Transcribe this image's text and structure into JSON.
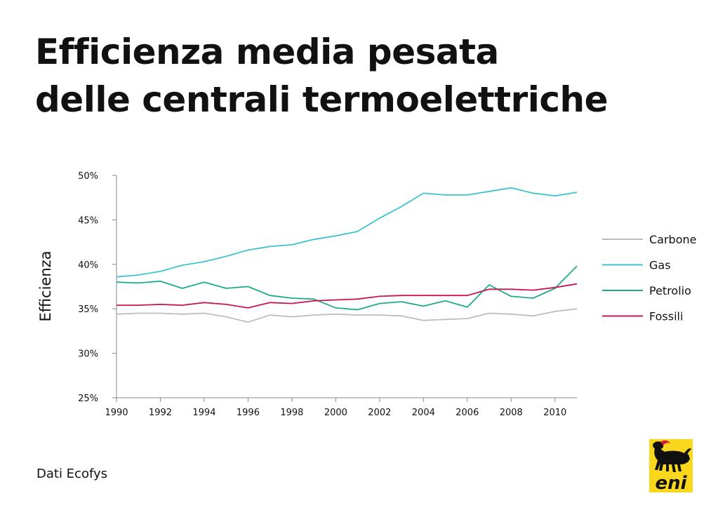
{
  "title": {
    "line1": "Efficienza media pesata",
    "line2": "delle centrali termoelettriche"
  },
  "source": "Dati Ecofys",
  "logo": {
    "icon": "eni-six-legged-dog-logo",
    "text": "eni",
    "background": "#f9d71c"
  },
  "chart_data": {
    "type": "line",
    "title": "Efficienza media pesata delle centrali termoelettriche",
    "xlabel": "",
    "ylabel": "Efficienza",
    "xlim": [
      1990,
      2011
    ],
    "ylim": [
      25,
      50
    ],
    "x_ticks": [
      1990,
      1992,
      1994,
      1996,
      1998,
      2000,
      2002,
      2004,
      2006,
      2008,
      2010
    ],
    "x_tick_labels": [
      "1990",
      "1992",
      "1994",
      "1996",
      "1998",
      "2000",
      "2002",
      "2004",
      "2006",
      "2008",
      "2010"
    ],
    "y_ticks": [
      25,
      30,
      35,
      40,
      45,
      50
    ],
    "y_tick_labels": [
      "25%",
      "30%",
      "35%",
      "40%",
      "45%",
      "50%"
    ],
    "grid": false,
    "legend_position": "right",
    "x": [
      1990,
      1991,
      1992,
      1993,
      1994,
      1995,
      1996,
      1997,
      1998,
      1999,
      2000,
      2001,
      2002,
      2003,
      2004,
      2005,
      2006,
      2007,
      2008,
      2009,
      2010,
      2011
    ],
    "series": [
      {
        "name": "Carbone",
        "color": "#bdbdbd",
        "values": [
          34.4,
          34.5,
          34.5,
          34.4,
          34.5,
          34.1,
          33.5,
          34.3,
          34.1,
          34.3,
          34.4,
          34.3,
          34.3,
          34.2,
          33.7,
          33.8,
          33.9,
          34.5,
          34.4,
          34.2,
          34.7,
          35.0
        ]
      },
      {
        "name": "Gas",
        "color": "#3ec3d2",
        "values": [
          38.6,
          38.8,
          39.2,
          39.9,
          40.3,
          40.9,
          41.6,
          42.0,
          42.2,
          42.8,
          43.2,
          43.7,
          45.2,
          46.5,
          48.0,
          47.8,
          47.8,
          48.2,
          48.6,
          48.0,
          47.7,
          48.1
        ]
      },
      {
        "name": "Petrolio",
        "color": "#1faa8a",
        "values": [
          38.0,
          37.9,
          38.1,
          37.3,
          38.0,
          37.3,
          37.5,
          36.5,
          36.2,
          36.1,
          35.1,
          34.9,
          35.6,
          35.8,
          35.3,
          35.9,
          35.2,
          37.7,
          36.4,
          36.2,
          37.3,
          39.8
        ]
      },
      {
        "name": "Fossili",
        "color": "#c8174f",
        "values": [
          35.4,
          35.4,
          35.5,
          35.4,
          35.7,
          35.5,
          35.1,
          35.7,
          35.6,
          35.9,
          36.0,
          36.1,
          36.4,
          36.5,
          36.5,
          36.5,
          36.5,
          37.2,
          37.2,
          37.1,
          37.4,
          37.8
        ]
      }
    ]
  }
}
